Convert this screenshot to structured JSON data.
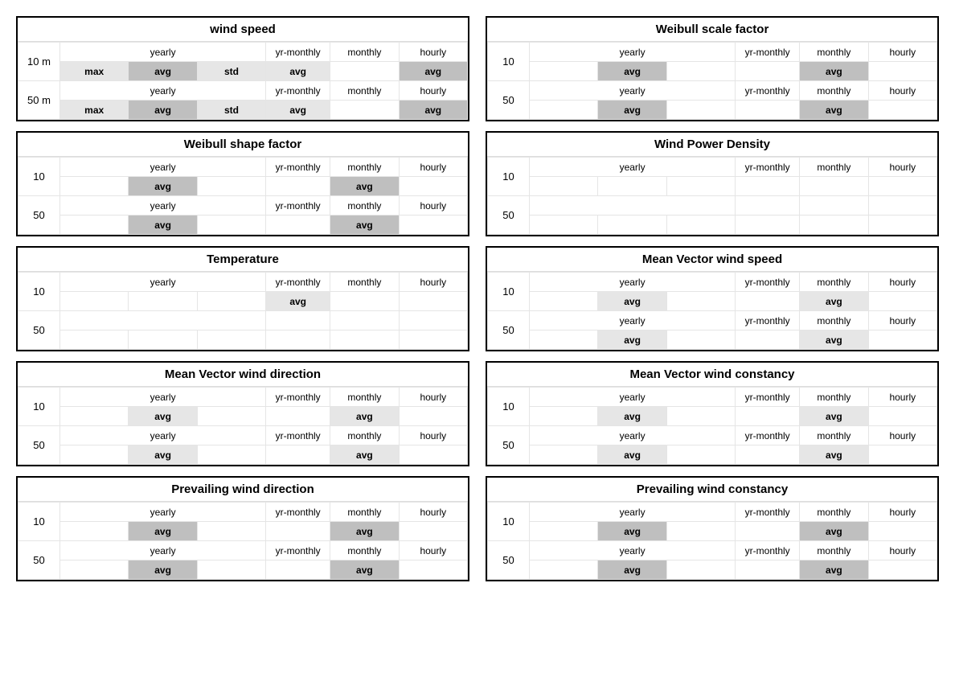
{
  "labels": {
    "yearly": "yearly",
    "yr_monthly": "yr-monthly",
    "monthly": "monthly",
    "hourly": "hourly",
    "max": "max",
    "avg": "avg",
    "std": "std",
    "h10m": "10 m",
    "h50m": "50 m",
    "h10": "10",
    "h50": "50"
  },
  "panels": {
    "wind_speed": {
      "title": "wind speed"
    },
    "weibull_scale": {
      "title": "Weibull scale factor"
    },
    "weibull_shape": {
      "title": "Weibull shape factor"
    },
    "wpd": {
      "title": "Wind Power Density"
    },
    "temperature": {
      "title": "Temperature"
    },
    "mv_speed": {
      "title": "Mean Vector wind speed"
    },
    "mv_direction": {
      "title": "Mean Vector wind direction"
    },
    "mv_constancy": {
      "title": "Mean Vector wind constancy"
    },
    "pw_direction": {
      "title": "Prevailing wind direction"
    },
    "pw_constancy": {
      "title": "Prevailing wind constancy"
    }
  },
  "style": {
    "bg_dark": "#bfbfbf",
    "bg_light": "#e6e6e6",
    "border": "#e5e5e5",
    "panel_border": "#000000",
    "title_fontsize": 15,
    "cell_fontsize": 12
  }
}
